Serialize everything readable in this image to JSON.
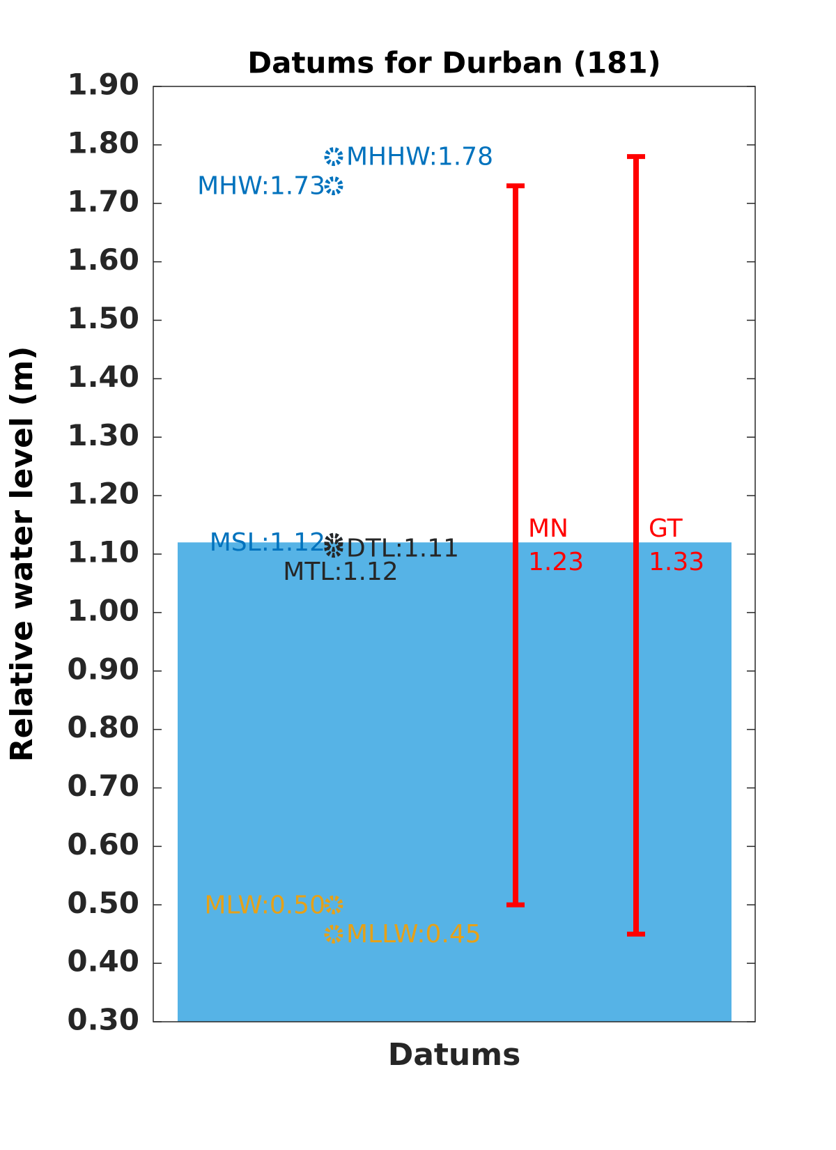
{
  "chart_data": {
    "type": "datum",
    "title": "Datums for Durban (181)",
    "x_label": "Datums",
    "y_label": "Relative water level (m)",
    "ylim": [
      0.3,
      1.9
    ],
    "yticks": [
      {
        "value": 0.3,
        "label": "0.30"
      },
      {
        "value": 0.4,
        "label": "0.40"
      },
      {
        "value": 0.5,
        "label": "0.50"
      },
      {
        "value": 0.6,
        "label": "0.60"
      },
      {
        "value": 0.7,
        "label": "0.70"
      },
      {
        "value": 0.8,
        "label": "0.80"
      },
      {
        "value": 0.9,
        "label": "0.90"
      },
      {
        "value": 1.0,
        "label": "1.00"
      },
      {
        "value": 1.1,
        "label": "1.10"
      },
      {
        "value": 1.2,
        "label": "1.20"
      },
      {
        "value": 1.3,
        "label": "1.30"
      },
      {
        "value": 1.4,
        "label": "1.40"
      },
      {
        "value": 1.5,
        "label": "1.50"
      },
      {
        "value": 1.6,
        "label": "1.60"
      },
      {
        "value": 1.7,
        "label": "1.70"
      },
      {
        "value": 1.8,
        "label": "1.80"
      },
      {
        "value": 1.9,
        "label": "1.90"
      }
    ],
    "bar_color": "#56b3e6",
    "datums": [
      {
        "name": "MHHW",
        "value": 1.78,
        "value_label": "MHHW:1.78",
        "color": "#0072bd"
      },
      {
        "name": "MHW",
        "value": 1.73,
        "value_label": "MHW:1.73",
        "color": "#0072bd"
      },
      {
        "name": "MSL",
        "value": 1.12,
        "value_label": "MSL:1.12",
        "color": "#0072bd"
      },
      {
        "name": "DTL",
        "value": 1.11,
        "value_label": "DTL:1.11",
        "color": "#262626"
      },
      {
        "name": "MTL",
        "value": 1.12,
        "value_label": "MTL:1.12",
        "color": "#262626"
      },
      {
        "name": "MLW",
        "value": 0.5,
        "value_label": "MLW:0.50",
        "color": "#e6a118"
      },
      {
        "name": "MLLW",
        "value": 0.45,
        "value_label": "MLLW:0.45",
        "color": "#e6a118"
      }
    ],
    "ranges": [
      {
        "name": "MN",
        "value": 1.23,
        "low": 0.5,
        "high": 1.73,
        "color": "#ff0000"
      },
      {
        "name": "GT",
        "value": 1.33,
        "low": 0.45,
        "high": 1.78,
        "color": "#ff0000"
      }
    ]
  }
}
